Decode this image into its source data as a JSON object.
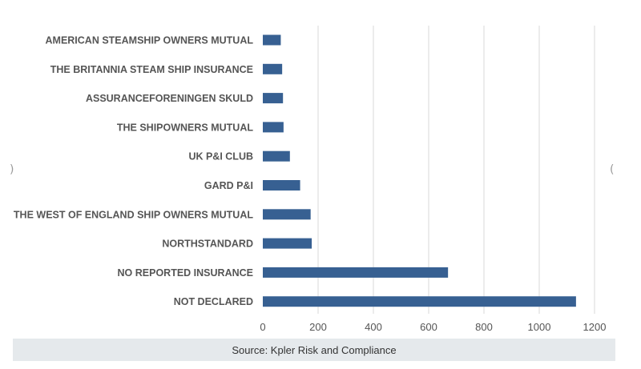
{
  "chart_data": {
    "type": "bar",
    "orientation": "horizontal",
    "categories": [
      "AMERICAN STEAMSHIP OWNERS MUTUAL",
      "THE BRITANNIA STEAM SHIP INSURANCE",
      "ASSURANCEFORENINGEN SKULD",
      "THE SHIPOWNERS MUTUAL ",
      "UK P&I CLUB",
      "GARD P&I",
      "THE WEST OF ENGLAND SHIP OWNERS MUTUAL",
      "NORTHSTANDARD",
      "NO REPORTED INSURANCE",
      "NOT DECLARED"
    ],
    "values": [
      65,
      70,
      73,
      75,
      98,
      135,
      173,
      177,
      670,
      1133
    ],
    "xlim": [
      0,
      1200
    ],
    "xticks": [
      0,
      200,
      400,
      600,
      800,
      1000,
      1200
    ],
    "grid": true,
    "bar_color": "#376092",
    "title": "",
    "xlabel": "",
    "ylabel": ""
  },
  "source": "Source: Kpler Risk and Compliance"
}
